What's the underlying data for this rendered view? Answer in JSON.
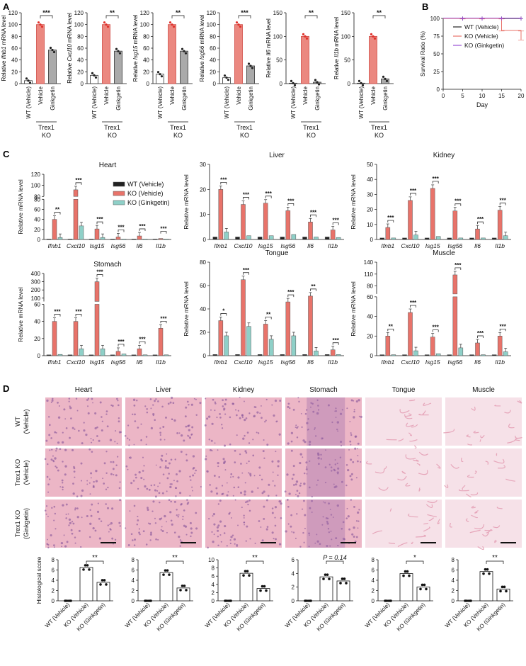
{
  "panel_letters": [
    "A",
    "B",
    "C",
    "D"
  ],
  "colors": {
    "wt": "#222222",
    "ko": "#e8736a",
    "gink": "#aaaaaa",
    "gink_c": "#8fd0c8",
    "purple": "#9a4fd6",
    "he_bg": "#e9a8bd",
    "he_dark": "#8d5a9d"
  },
  "group_labels": {
    "wt": "WT (Vehicle)",
    "vehicle": "Vehicle",
    "ginkgetin": "Ginkgetin",
    "trex1": "Trex1",
    "ko": "KO"
  },
  "panelA": {
    "charts": [
      {
        "gene": "Ifnb1",
        "ylabel_prefix": "Relative",
        "ylabel_suffix": "mRNA level",
        "ymax": 120,
        "ticks": [
          0,
          20,
          40,
          60,
          80,
          100,
          120
        ],
        "values": [
          5,
          100,
          57
        ],
        "sig": "***"
      },
      {
        "gene": "Cxcl10",
        "ylabel_prefix": "Relative",
        "ylabel_suffix": "mRNA level",
        "ymax": 120,
        "ticks": [
          0,
          20,
          40,
          60,
          80,
          100,
          120
        ],
        "values": [
          14,
          100,
          55
        ],
        "sig": "**"
      },
      {
        "gene": "Isg15",
        "ylabel_prefix": "Relative",
        "ylabel_suffix": "mRNA level",
        "ymax": 120,
        "ticks": [
          0,
          20,
          40,
          60,
          80,
          100,
          120
        ],
        "values": [
          16,
          100,
          55
        ],
        "sig": "**"
      },
      {
        "gene": "Isg56",
        "ylabel_prefix": "Relative",
        "ylabel_suffix": "mRNA level",
        "ymax": 120,
        "ticks": [
          0,
          20,
          40,
          60,
          80,
          100,
          120
        ],
        "values": [
          10,
          100,
          30
        ],
        "sig": "***"
      },
      {
        "gene": "Il6",
        "ylabel_prefix": "Relative",
        "ylabel_suffix": "mRNA level",
        "ymax": 150,
        "ticks": [
          0,
          50,
          100,
          150
        ],
        "values": [
          1,
          100,
          3
        ],
        "sig": "**"
      },
      {
        "gene": "Il1b",
        "ylabel_prefix": "Relative",
        "ylabel_suffix": "mRNA level",
        "ymax": 150,
        "ticks": [
          0,
          50,
          100,
          150
        ],
        "values": [
          1,
          100,
          10
        ],
        "sig": "**"
      }
    ]
  },
  "panelB": {
    "ylabel": "Survival Ratio (%)",
    "xlabel": "Day",
    "xticks": [
      0,
      5,
      10,
      15,
      20
    ],
    "yticks": [
      0,
      25,
      50,
      75,
      100
    ],
    "legend": [
      "WT (Vehicle)",
      "KO (Vehicle)",
      "KO (Ginkgetin)"
    ],
    "chart_data": {
      "type": "line",
      "series": [
        {
          "name": "WT (Vehicle)",
          "x": [
            0,
            5,
            10,
            15,
            20
          ],
          "y": [
            100,
            100,
            100,
            100,
            100
          ]
        },
        {
          "name": "KO (Vehicle)",
          "x": [
            0,
            5,
            10,
            15,
            15,
            20,
            20
          ],
          "y": [
            100,
            100,
            100,
            100,
            83,
            83,
            70
          ]
        },
        {
          "name": "KO (Ginkgetin)",
          "x": [
            0,
            5,
            10,
            15,
            20
          ],
          "y": [
            100,
            100,
            100,
            100,
            100
          ]
        }
      ]
    }
  },
  "panelC": {
    "ylabel": "Relative mRNA level",
    "legend": [
      "WT (Vehicle)",
      "KO (Vehicle)",
      "KO (Ginkgetin)"
    ],
    "genes": [
      "Ifnb1",
      "Cxcl10",
      "Isg15",
      "Isg56",
      "Il6",
      "Il1b"
    ],
    "charts": [
      {
        "title": "Heart",
        "broken": true,
        "bottom_max": 80,
        "bottom_ticks": [
          0,
          20,
          40,
          60,
          80
        ],
        "top_min": 80,
        "top_max": 120,
        "top_ticks": [
          80,
          100,
          120
        ],
        "values": [
          [
            1,
            40,
            4
          ],
          [
            1,
            92,
            27
          ],
          [
            1,
            21,
            4
          ],
          [
            1,
            5,
            1
          ],
          [
            1,
            7,
            1
          ],
          [
            1,
            2,
            1
          ]
        ],
        "sigs": [
          "**",
          "***",
          "***",
          "***",
          "***",
          "***"
        ]
      },
      {
        "title": "Liver",
        "broken": false,
        "bottom_max": 30,
        "bottom_ticks": [
          0,
          10,
          20,
          30
        ],
        "values": [
          [
            1,
            20,
            3
          ],
          [
            1,
            14,
            1.5
          ],
          [
            1,
            14.5,
            1.5
          ],
          [
            1,
            11.5,
            2
          ],
          [
            1,
            7,
            1
          ],
          [
            1,
            3.8,
            0.8
          ]
        ],
        "sigs": [
          "***",
          "***",
          "***",
          "***",
          "***",
          "***"
        ]
      },
      {
        "title": "Kidney",
        "broken": false,
        "bottom_max": 50,
        "bottom_ticks": [
          0,
          10,
          20,
          30,
          40,
          50
        ],
        "values": [
          [
            1,
            8,
            1
          ],
          [
            1,
            26,
            3
          ],
          [
            1,
            34,
            2
          ],
          [
            1,
            19,
            1
          ],
          [
            1,
            7,
            1
          ],
          [
            1,
            19.5,
            2.5
          ]
        ],
        "sigs": [
          "***",
          "***",
          "***",
          "***",
          "***",
          "***"
        ]
      },
      {
        "title": "Stomach",
        "broken": true,
        "bottom_max": 60,
        "bottom_ticks": [
          0,
          20,
          40,
          60
        ],
        "top_min": 60,
        "top_max": 400,
        "top_ticks": [
          100,
          200,
          300,
          400
        ],
        "values": [
          [
            1,
            40,
            1.5
          ],
          [
            1,
            40,
            8
          ],
          [
            1,
            300,
            8
          ],
          [
            1,
            5,
            2
          ],
          [
            1,
            8,
            1
          ],
          [
            1,
            32,
            1
          ]
        ],
        "sigs": [
          "***",
          "***",
          "***",
          "***",
          "***",
          "***"
        ]
      },
      {
        "title": "Tongue",
        "broken": false,
        "bottom_max": 80,
        "bottom_ticks": [
          0,
          20,
          40,
          60,
          80
        ],
        "values": [
          [
            1,
            30,
            17
          ],
          [
            1,
            65,
            25
          ],
          [
            1,
            27,
            14
          ],
          [
            1,
            46,
            17
          ],
          [
            1,
            51,
            4
          ],
          [
            1,
            5,
            1
          ]
        ],
        "sigs": [
          "*",
          "***",
          "**",
          "***",
          "**",
          "***"
        ]
      },
      {
        "title": "Muscle",
        "broken": true,
        "bottom_max": 60,
        "bottom_ticks": [
          0,
          20,
          40,
          60
        ],
        "top_min": 60,
        "top_max": 140,
        "top_ticks": [
          80,
          110,
          140
        ],
        "values": [
          [
            1,
            20,
            1
          ],
          [
            1,
            44,
            5
          ],
          [
            1,
            19,
            2
          ],
          [
            1,
            108,
            8
          ],
          [
            1,
            13,
            1
          ],
          [
            1,
            20,
            4
          ]
        ],
        "sigs": [
          "**",
          "***",
          "***",
          "***",
          "***",
          "***"
        ]
      }
    ]
  },
  "panelD": {
    "tissues": [
      "Heart",
      "Liver",
      "Kidney",
      "Stomach",
      "Tongue",
      "Muscle"
    ],
    "row_labels": [
      [
        "WT",
        "(Vehicle)"
      ],
      [
        "Trex1 KO",
        "(Vehicle)"
      ],
      [
        "Trex1 KO",
        "(Ginkgetin)"
      ]
    ],
    "score_ylabel": "Histological score",
    "xlabels": [
      "WT (Vehicle)",
      "KO (Vehicle)",
      "KO (Ginkgetin)"
    ],
    "charts": [
      {
        "ymax": 8,
        "ticks": [
          0,
          2,
          4,
          6,
          8
        ],
        "values": [
          0,
          6.5,
          3.6
        ],
        "sig": "**"
      },
      {
        "ymax": 8,
        "ticks": [
          0,
          2,
          4,
          6,
          8
        ],
        "values": [
          0,
          5.5,
          2.5
        ],
        "sig": "**"
      },
      {
        "ymax": 10,
        "ticks": [
          0,
          2,
          4,
          6,
          8,
          10
        ],
        "values": [
          0,
          6.7,
          3.0
        ],
        "sig": "**"
      },
      {
        "ymax": 6,
        "ticks": [
          0,
          2,
          4,
          6
        ],
        "values": [
          0,
          3.5,
          2.9
        ],
        "sig": "P = 0.14"
      },
      {
        "ymax": 8,
        "ticks": [
          0,
          2,
          4,
          6,
          8
        ],
        "values": [
          0,
          5.3,
          2.7
        ],
        "sig": "*"
      },
      {
        "ymax": 8,
        "ticks": [
          0,
          2,
          4,
          6,
          8
        ],
        "values": [
          0,
          5.7,
          2.3
        ],
        "sig": "**"
      }
    ]
  }
}
